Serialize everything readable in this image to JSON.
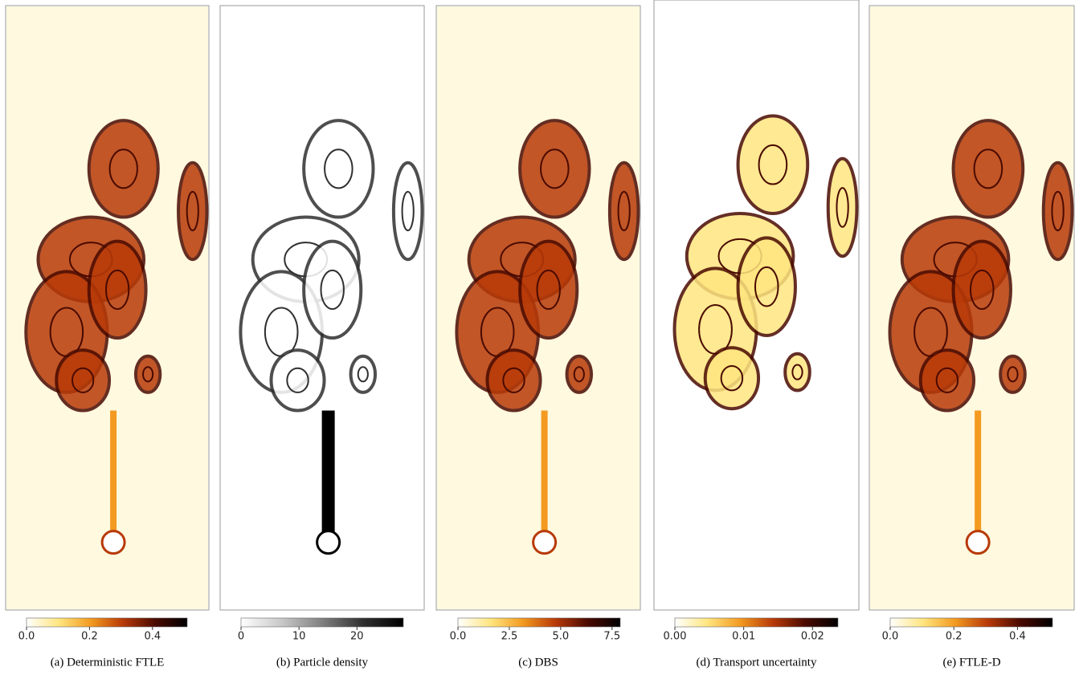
{
  "chart_data": [
    {
      "type": "heatmap",
      "caption": "(a) Deterministic FTLE",
      "zlim": [
        0,
        0.51
      ],
      "zticks": [
        {
          "value": 0,
          "label": "0.0"
        },
        0.2,
        0.4
      ],
      "colors": [
        "#ffffff",
        "#ffe680",
        "#f39a20",
        "#b83a08",
        "#4a0a00",
        "#000000"
      ]
    },
    {
      "type": "heatmap",
      "caption": "(b) Particle density",
      "zlim": [
        0,
        28
      ],
      "zticks": [
        0,
        10,
        20
      ],
      "colors": [
        "#ffffff",
        "#c8c8c8",
        "#808080",
        "#303030",
        "#000000"
      ]
    },
    {
      "type": "heatmap",
      "caption": "(c) DBS",
      "zlim": [
        0,
        7.9
      ],
      "zticks": [
        {
          "value": 0,
          "label": "0.0"
        },
        2.5,
        {
          "value": 5,
          "label": "5.0"
        },
        7.5
      ],
      "colors": [
        "#ffffff",
        "#ffe680",
        "#f39a20",
        "#b83a08",
        "#4a0a00",
        "#000000"
      ]
    },
    {
      "type": "heatmap",
      "caption": "(d) Transport uncertainty",
      "zlim": [
        0,
        0.0237
      ],
      "zticks": [
        {
          "value": 0,
          "label": "0.00"
        },
        0.01,
        0.02
      ],
      "colors": [
        "#ffffff",
        "#ffe680",
        "#f39a20",
        "#b83a08",
        "#4a0a00",
        "#000000"
      ]
    },
    {
      "type": "heatmap",
      "caption": "(e) FTLE-D",
      "zlim": [
        0,
        0.51
      ],
      "zticks": [
        {
          "value": 0,
          "label": "0.0"
        },
        0.2,
        0.4
      ],
      "colors": [
        "#ffffff",
        "#ffe680",
        "#f39a20",
        "#b83a08",
        "#4a0a00",
        "#000000"
      ]
    }
  ]
}
